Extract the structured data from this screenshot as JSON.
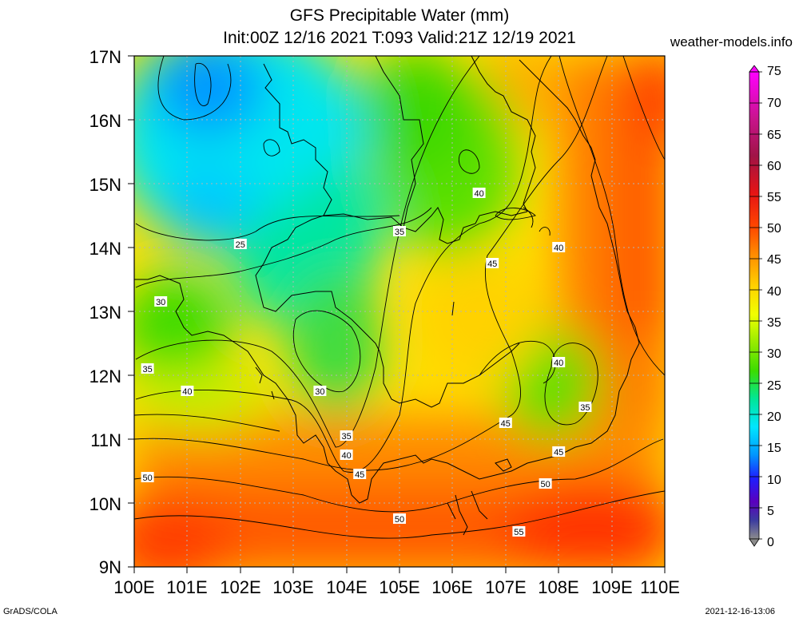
{
  "title": "GFS Precipitable Water (mm)",
  "subtitle": "Init:00Z 12/16 2021 T:093 Valid:21Z 12/19 2021",
  "site": "weather-models.info",
  "footer_left": "GrADS/COLA",
  "footer_right": "2021-12-16-13:06",
  "lat_labels": [
    "17N",
    "16N",
    "15N",
    "14N",
    "13N",
    "12N",
    "11N",
    "10N",
    "9N"
  ],
  "lon_labels": [
    "100E",
    "101E",
    "102E",
    "103E",
    "104E",
    "105E",
    "106E",
    "107E",
    "108E",
    "109E",
    "110E"
  ],
  "colorbar": {
    "labels": [
      "75",
      "70",
      "65",
      "60",
      "55",
      "50",
      "45",
      "40",
      "35",
      "30",
      "25",
      "20",
      "15",
      "10",
      "5",
      "0"
    ],
    "colors": [
      "#ff00ff",
      "#d01c8b",
      "#a0144c",
      "#c81414",
      "#ff3c00",
      "#ff7800",
      "#ffb400",
      "#ffff00",
      "#b4f000",
      "#3cdc00",
      "#00e68c",
      "#00e6f0",
      "#0096ff",
      "#1e1eff",
      "#5000c8",
      "#282896",
      "#8c8c8c"
    ]
  },
  "contour_labels": [
    {
      "text": "25",
      "lon": 102.0,
      "lat": 14.05
    },
    {
      "text": "30",
      "lon": 100.5,
      "lat": 13.15
    },
    {
      "text": "35",
      "lon": 100.25,
      "lat": 12.1
    },
    {
      "text": "40",
      "lon": 101.0,
      "lat": 11.75
    },
    {
      "text": "50",
      "lon": 100.25,
      "lat": 10.4
    },
    {
      "text": "35",
      "lon": 105.0,
      "lat": 14.25
    },
    {
      "text": "40",
      "lon": 106.5,
      "lat": 14.85
    },
    {
      "text": "45",
      "lon": 106.75,
      "lat": 13.75
    },
    {
      "text": "40",
      "lon": 108.0,
      "lat": 14.0
    },
    {
      "text": "40",
      "lon": 108.0,
      "lat": 12.2
    },
    {
      "text": "35",
      "lon": 108.5,
      "lat": 11.5
    },
    {
      "text": "45",
      "lon": 107.0,
      "lat": 11.25
    },
    {
      "text": "45",
      "lon": 108.0,
      "lat": 10.8
    },
    {
      "text": "50",
      "lon": 107.75,
      "lat": 10.3
    },
    {
      "text": "55",
      "lon": 107.25,
      "lat": 9.55
    },
    {
      "text": "50",
      "lon": 105.0,
      "lat": 9.75
    },
    {
      "text": "30",
      "lon": 103.5,
      "lat": 11.75
    },
    {
      "text": "35",
      "lon": 104.0,
      "lat": 11.05
    },
    {
      "text": "40",
      "lon": 104.0,
      "lat": 10.75
    },
    {
      "text": "45",
      "lon": 104.25,
      "lat": 10.45
    }
  ]
}
